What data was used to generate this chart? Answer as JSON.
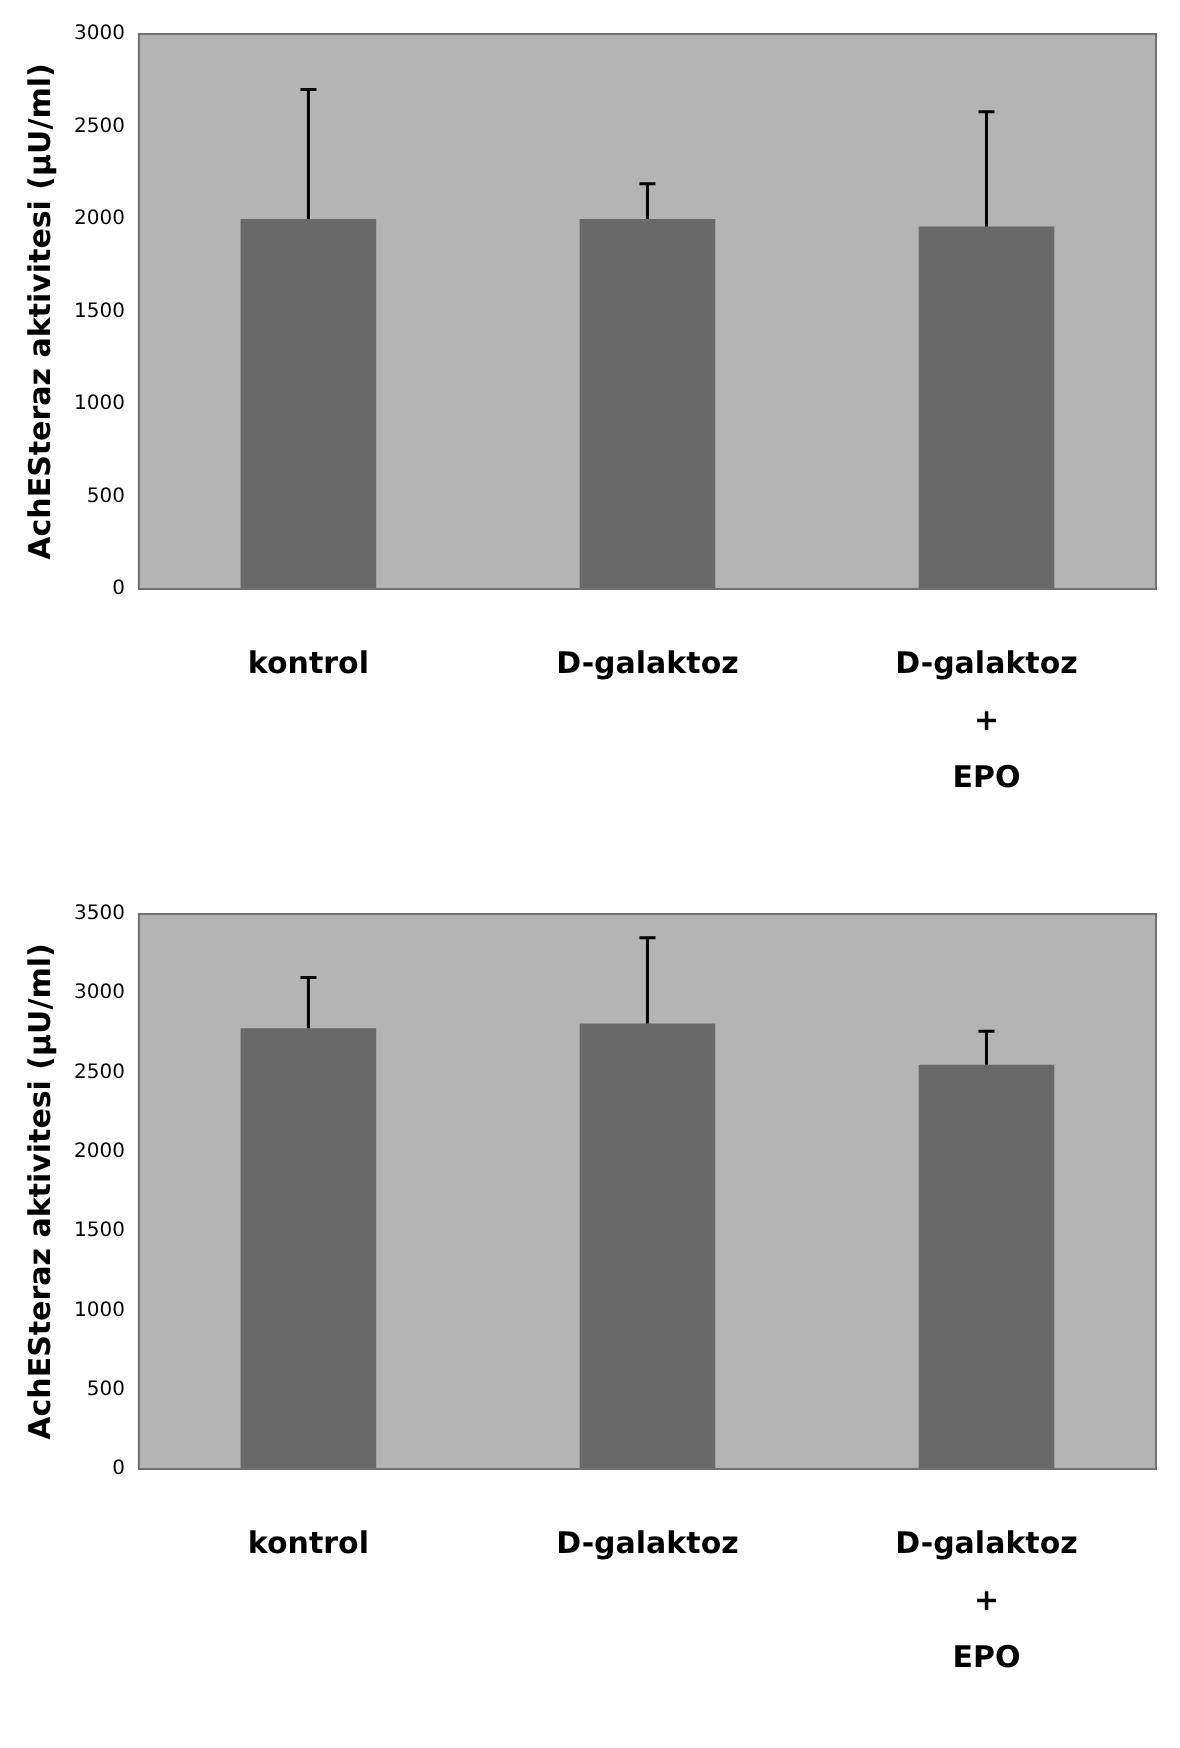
{
  "chart_data": [
    {
      "type": "bar",
      "ylabel": "AchESteraz aktivitesi (µU/ml)",
      "categories": [
        "kontrol",
        "D-galaktoz",
        "D-galaktoz\n+\nEPO"
      ],
      "values": [
        2000,
        2000,
        1960
      ],
      "errors": [
        [
          2000,
          2700
        ],
        [
          2000,
          2190
        ],
        [
          1960,
          2580
        ]
      ],
      "color": "#696969",
      "ylim": [
        0,
        3000
      ],
      "yticks": [
        0,
        500,
        1000,
        1500,
        2000,
        2500,
        3000
      ],
      "grid": false,
      "legend": false
    },
    {
      "type": "bar",
      "ylabel": "AchESteraz aktivitesi (µU/ml)",
      "categories": [
        "kontrol",
        "D-galaktoz",
        "D-galaktoz\n+\nEPO"
      ],
      "values": [
        2780,
        2810,
        2550
      ],
      "errors": [
        [
          2780,
          3100
        ],
        [
          2810,
          3350
        ],
        [
          2550,
          2760
        ]
      ],
      "color": "#696969",
      "ylim": [
        0,
        3500
      ],
      "yticks": [
        0,
        500,
        1000,
        1500,
        2000,
        2500,
        3000,
        3500
      ],
      "grid": false,
      "legend": false
    }
  ]
}
